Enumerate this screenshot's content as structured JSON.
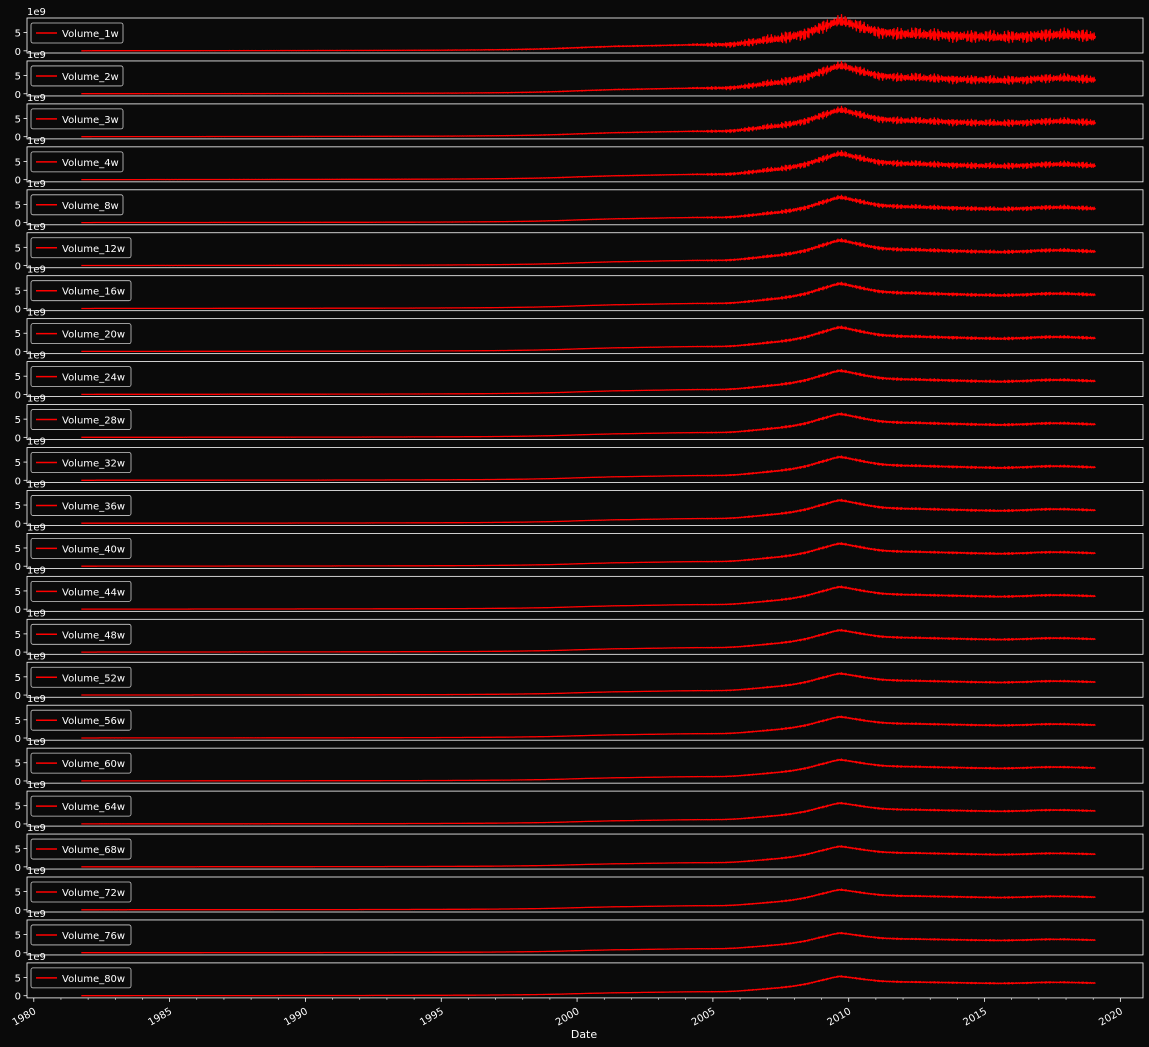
{
  "figure": {
    "background_color": "#0a0a0a",
    "axes_color": "#ffffff",
    "line_color": "#ff0000"
  },
  "chart_data": {
    "type": "line",
    "layout": "stacked-subplots",
    "shared_x": true,
    "xlabel": "Date",
    "ylabel": "",
    "xlim": [
      "1979-10",
      "2020-11"
    ],
    "x_ticks": [
      "1980",
      "1985",
      "1990",
      "1995",
      "2000",
      "2005",
      "2010",
      "2015",
      "2020"
    ],
    "y_ticks": [
      "0",
      "5"
    ],
    "y_offset_label": "1e9",
    "y_unit_multiplier": 1000000000,
    "legend_placement": "upper-left",
    "grid": false,
    "x": [
      "1981-10",
      "1982-06",
      "1983-06",
      "1984-06",
      "1985-06",
      "1986-06",
      "1987-06",
      "1988-06",
      "1989-06",
      "1990-06",
      "1991-06",
      "1992-06",
      "1993-06",
      "1994-06",
      "1995-06",
      "1996-06",
      "1997-06",
      "1997-12",
      "1998-06",
      "1998-12",
      "1999-06",
      "1999-12",
      "2000-06",
      "2000-12",
      "2001-06",
      "2001-12",
      "2002-06",
      "2002-12",
      "2003-06",
      "2003-12",
      "2004-06",
      "2004-12",
      "2005-06",
      "2005-12",
      "2006-06",
      "2006-12",
      "2007-06",
      "2007-12",
      "2008-03",
      "2008-06",
      "2008-09",
      "2008-12",
      "2009-03",
      "2009-06",
      "2009-09",
      "2009-12",
      "2010-03",
      "2010-06",
      "2010-09",
      "2010-12",
      "2011-03",
      "2011-06",
      "2011-09",
      "2011-12",
      "2012-06",
      "2012-12",
      "2013-06",
      "2013-12",
      "2014-06",
      "2014-12",
      "2015-06",
      "2015-12",
      "2016-06",
      "2016-12",
      "2017-06",
      "2017-12",
      "2018-06",
      "2018-12",
      "2019-02"
    ],
    "base_values": [
      0.01,
      0.02,
      0.02,
      0.03,
      0.03,
      0.04,
      0.05,
      0.05,
      0.06,
      0.07,
      0.08,
      0.09,
      0.11,
      0.13,
      0.16,
      0.2,
      0.27,
      0.32,
      0.38,
      0.45,
      0.55,
      0.68,
      0.8,
      0.9,
      1.0,
      1.05,
      1.12,
      1.18,
      1.25,
      1.3,
      1.35,
      1.35,
      1.4,
      1.6,
      1.95,
      2.3,
      2.7,
      3.2,
      3.6,
      4.0,
      4.5,
      5.1,
      5.6,
      6.2,
      6.6,
      6.3,
      5.9,
      5.5,
      5.1,
      4.8,
      4.5,
      4.3,
      4.2,
      4.1,
      4.0,
      3.9,
      3.8,
      3.75,
      3.6,
      3.5,
      3.4,
      3.45,
      3.6,
      3.8,
      3.9,
      3.85,
      3.75,
      3.6,
      3.6
    ],
    "series": [
      {
        "name": "Volume_1w",
        "window": 1,
        "peak": 8.1,
        "final": 4.0
      },
      {
        "name": "Volume_2w",
        "window": 2,
        "peak": 7.6,
        "final": 3.9
      },
      {
        "name": "Volume_3w",
        "window": 3,
        "peak": 7.3,
        "final": 3.9
      },
      {
        "name": "Volume_4w",
        "window": 4,
        "peak": 7.1,
        "final": 3.9
      },
      {
        "name": "Volume_8w",
        "window": 8,
        "peak": 6.9,
        "final": 3.9
      },
      {
        "name": "Volume_12w",
        "window": 12,
        "peak": 6.9,
        "final": 3.9
      },
      {
        "name": "Volume_16w",
        "window": 16,
        "peak": 6.8,
        "final": 3.8
      },
      {
        "name": "Volume_20w",
        "window": 20,
        "peak": 6.6,
        "final": 3.7
      },
      {
        "name": "Volume_24w",
        "window": 24,
        "peak": 6.5,
        "final": 3.7
      },
      {
        "name": "Volume_28w",
        "window": 28,
        "peak": 6.4,
        "final": 3.6
      },
      {
        "name": "Volume_32w",
        "window": 32,
        "peak": 6.4,
        "final": 3.6
      },
      {
        "name": "Volume_36w",
        "window": 36,
        "peak": 6.3,
        "final": 3.6
      },
      {
        "name": "Volume_40w",
        "window": 40,
        "peak": 6.2,
        "final": 3.6
      },
      {
        "name": "Volume_44w",
        "window": 44,
        "peak": 6.1,
        "final": 3.6
      },
      {
        "name": "Volume_48w",
        "window": 48,
        "peak": 6.0,
        "final": 3.6
      },
      {
        "name": "Volume_52w",
        "window": 52,
        "peak": 5.9,
        "final": 3.6
      },
      {
        "name": "Volume_56w",
        "window": 56,
        "peak": 5.8,
        "final": 3.6
      },
      {
        "name": "Volume_60w",
        "window": 60,
        "peak": 5.8,
        "final": 3.6
      },
      {
        "name": "Volume_64w",
        "window": 64,
        "peak": 5.7,
        "final": 3.6
      },
      {
        "name": "Volume_68w",
        "window": 68,
        "peak": 5.6,
        "final": 3.5
      },
      {
        "name": "Volume_72w",
        "window": 72,
        "peak": 5.5,
        "final": 3.5
      },
      {
        "name": "Volume_76w",
        "window": 76,
        "peak": 5.4,
        "final": 3.5
      },
      {
        "name": "Volume_80w",
        "window": 80,
        "peak": 5.3,
        "final": 3.5
      }
    ]
  }
}
